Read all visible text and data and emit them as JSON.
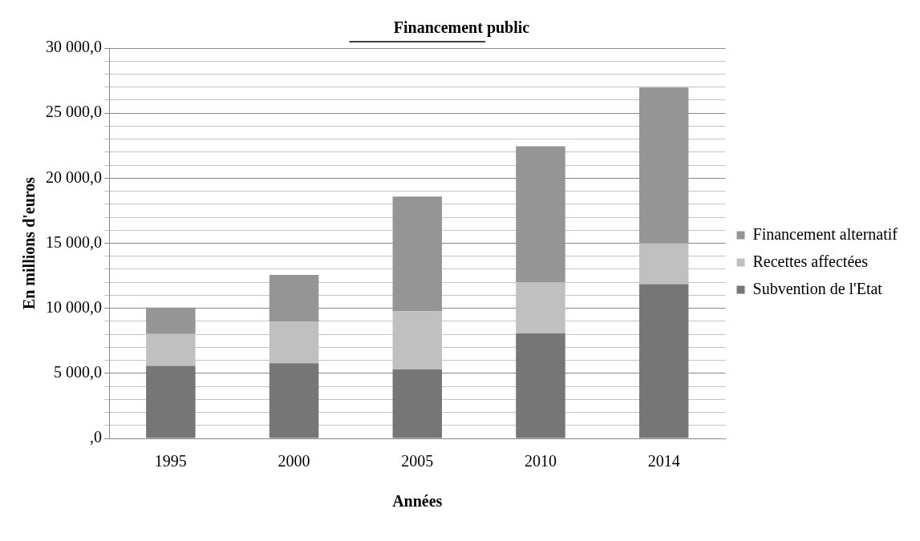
{
  "chart_data": {
    "type": "bar",
    "title": "Financement public",
    "xlabel": "Années",
    "ylabel": "En millions d'euros",
    "categories": [
      "1995",
      "2000",
      "2005",
      "2010",
      "2014"
    ],
    "stacked": true,
    "series": [
      {
        "name": "Subvention de l'Etat",
        "color": "#767676",
        "values": [
          5580,
          5780,
          5300,
          8070,
          11860
        ]
      },
      {
        "name": "Recettes affectées",
        "color": "#c0c0c0",
        "values": [
          2440,
          3220,
          4460,
          3930,
          3140
        ]
      },
      {
        "name": "Financement alternatif",
        "color": "#959595",
        "values": [
          2040,
          3560,
          8830,
          10460,
          11970
        ]
      }
    ],
    "ylim": [
      0,
      30000
    ],
    "yticks": [
      {
        "value": 0,
        "label": ",0"
      },
      {
        "value": 1000,
        "label": null
      },
      {
        "value": 2000,
        "label": null
      },
      {
        "value": 3000,
        "label": null
      },
      {
        "value": 4000,
        "label": null
      },
      {
        "value": 5000,
        "label": "5 000,0"
      },
      {
        "value": 6000,
        "label": null
      },
      {
        "value": 7000,
        "label": null
      },
      {
        "value": 8000,
        "label": null
      },
      {
        "value": 9000,
        "label": null
      },
      {
        "value": 10000,
        "label": "10 000,0"
      },
      {
        "value": 11000,
        "label": null
      },
      {
        "value": 12000,
        "label": null
      },
      {
        "value": 13000,
        "label": null
      },
      {
        "value": 14000,
        "label": null
      },
      {
        "value": 15000,
        "label": "15 000,0"
      },
      {
        "value": 16000,
        "label": null
      },
      {
        "value": 17000,
        "label": null
      },
      {
        "value": 18000,
        "label": null
      },
      {
        "value": 19000,
        "label": null
      },
      {
        "value": 20000,
        "label": "20 000,0"
      },
      {
        "value": 21000,
        "label": null
      },
      {
        "value": 22000,
        "label": null
      },
      {
        "value": 23000,
        "label": null
      },
      {
        "value": 24000,
        "label": null
      },
      {
        "value": 25000,
        "label": "25 000,0"
      },
      {
        "value": 26000,
        "label": null
      },
      {
        "value": 27000,
        "label": null
      },
      {
        "value": 28000,
        "label": null
      },
      {
        "value": 29000,
        "label": null
      },
      {
        "value": 30000,
        "label": "30 000,0"
      }
    ],
    "grid": "y",
    "legend": "right"
  }
}
